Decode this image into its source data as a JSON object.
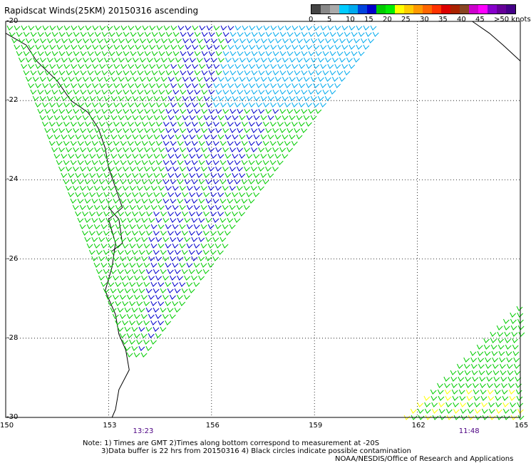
{
  "title": "Rapidscat Winds(25KM) 20150316 ascending",
  "colorbar": {
    "labels": [
      "0",
      "5",
      "10",
      "15",
      "20",
      "25",
      "30",
      "35",
      "40",
      "45",
      ">50 knots"
    ],
    "colors": [
      "#444444",
      "#888888",
      "#aaaaaa",
      "#00ccff",
      "#00aaee",
      "#0044dd",
      "#0000cc",
      "#00cc00",
      "#00ee00",
      "#ffff00",
      "#ffcc00",
      "#ff9900",
      "#ff6600",
      "#ff3300",
      "#dd0000",
      "#aa2200",
      "#884422",
      "#cc00cc",
      "#ff00ff",
      "#8800cc",
      "#660099",
      "#440088"
    ]
  },
  "map": {
    "lat_labels": [
      "-20",
      "-22",
      "-24",
      "-26",
      "-28",
      "-30"
    ],
    "lon_labels": [
      "150",
      "153",
      "156",
      "159",
      "162",
      "165"
    ],
    "lat_range": [
      -30,
      -20
    ],
    "lon_range": [
      150,
      165
    ],
    "grid": "dotted",
    "pass_times": [
      {
        "time": "13:23",
        "lon": 154
      },
      {
        "time": "11:48",
        "lon": 163.5
      }
    ]
  },
  "notes": {
    "line1": "Note: 1) Times are GMT 2)Times along bottom correspond to measurement at -20S",
    "line2": "3)Data buffer is 22 hrs from 20150316 4) Black circles indicate possible contamination"
  },
  "credit": "NOAA/NESDIS/Office of Research and Applications"
}
